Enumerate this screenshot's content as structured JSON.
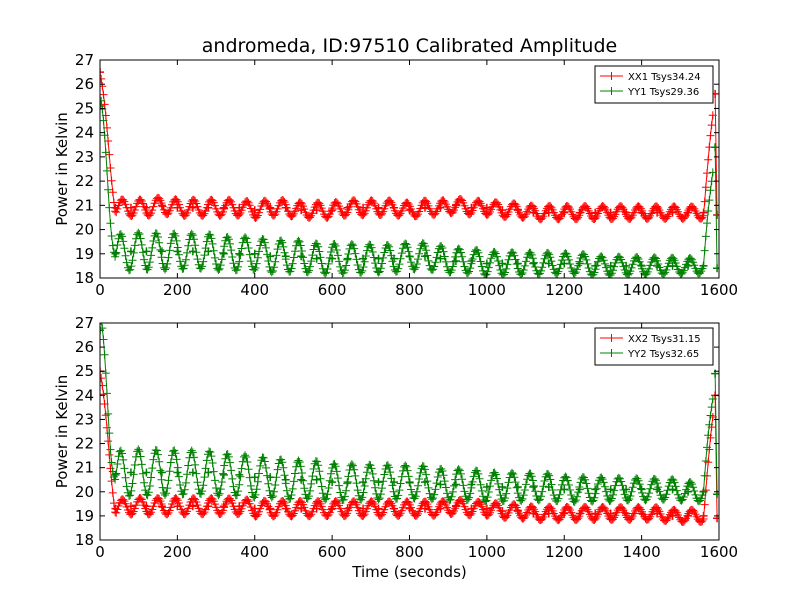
{
  "chart_data": [
    {
      "type": "line",
      "title": "andromeda, ID:97510 Calibrated Amplitude",
      "xlabel": "",
      "ylabel": "Power in Kelvin",
      "xlim": [
        0,
        1600
      ],
      "ylim": [
        18,
        27
      ],
      "xticks": [
        "0",
        "200",
        "400",
        "600",
        "800",
        "1000",
        "1200",
        "1400",
        "1600"
      ],
      "yticks": [
        "18",
        "19",
        "20",
        "21",
        "22",
        "23",
        "24",
        "25",
        "26",
        "27"
      ],
      "grid": false,
      "legend": "top-right",
      "marker": "+",
      "series": [
        {
          "name": "XX1 Tsys34.24",
          "color": "#ff0000",
          "x": [
            0,
            40,
            80,
            120,
            160,
            200,
            240,
            280,
            320,
            360,
            400,
            440,
            480,
            520,
            560,
            600,
            640,
            680,
            720,
            760,
            800,
            840,
            880,
            920,
            960,
            1000,
            1040,
            1080,
            1120,
            1160,
            1200,
            1240,
            1280,
            1320,
            1360,
            1400,
            1440,
            1480,
            1520,
            1560,
            1590,
            1595
          ],
          "y": [
            26.5,
            20.9,
            20.9,
            20.9,
            21.0,
            20.9,
            20.9,
            20.9,
            20.9,
            20.9,
            20.8,
            20.9,
            20.9,
            20.8,
            20.8,
            20.8,
            20.9,
            20.9,
            20.9,
            20.9,
            20.8,
            20.9,
            20.9,
            21.0,
            20.9,
            20.9,
            20.8,
            20.8,
            20.7,
            20.7,
            20.7,
            20.7,
            20.7,
            20.7,
            20.7,
            20.7,
            20.7,
            20.7,
            20.7,
            20.7,
            25.6,
            20.6
          ]
        },
        {
          "name": "YY1 Tsys29.36",
          "color": "#008000",
          "x": [
            0,
            40,
            80,
            120,
            160,
            200,
            240,
            280,
            320,
            360,
            400,
            440,
            480,
            520,
            560,
            600,
            640,
            680,
            720,
            760,
            800,
            840,
            880,
            920,
            960,
            1000,
            1040,
            1080,
            1120,
            1160,
            1200,
            1240,
            1280,
            1320,
            1360,
            1400,
            1440,
            1480,
            1520,
            1560,
            1590,
            1595
          ],
          "y": [
            25.1,
            19.0,
            19.1,
            19.1,
            19.1,
            19.1,
            19.1,
            19.1,
            19.0,
            19.0,
            19.0,
            18.9,
            18.9,
            18.9,
            18.8,
            18.8,
            18.8,
            18.8,
            18.8,
            18.8,
            18.9,
            18.9,
            18.8,
            18.7,
            18.7,
            18.6,
            18.6,
            18.6,
            18.6,
            18.6,
            18.6,
            18.6,
            18.5,
            18.5,
            18.5,
            18.5,
            18.5,
            18.5,
            18.5,
            18.5,
            23.4,
            18.4
          ]
        }
      ]
    },
    {
      "type": "line",
      "title": "",
      "xlabel": "Time (seconds)",
      "ylabel": "Power in Kelvin",
      "xlim": [
        0,
        1600
      ],
      "ylim": [
        18,
        27
      ],
      "xticks": [
        "0",
        "200",
        "400",
        "600",
        "800",
        "1000",
        "1200",
        "1400",
        "1600"
      ],
      "yticks": [
        "18",
        "19",
        "20",
        "21",
        "22",
        "23",
        "24",
        "25",
        "26",
        "27"
      ],
      "grid": false,
      "legend": "top-right",
      "marker": "+",
      "series": [
        {
          "name": "XX2 Tsys31.15",
          "color": "#ff0000",
          "x": [
            0,
            40,
            80,
            120,
            160,
            200,
            240,
            280,
            320,
            360,
            400,
            440,
            480,
            520,
            560,
            600,
            640,
            680,
            720,
            760,
            800,
            840,
            880,
            920,
            960,
            1000,
            1040,
            1080,
            1120,
            1160,
            1200,
            1240,
            1280,
            1320,
            1360,
            1400,
            1440,
            1480,
            1520,
            1560,
            1590,
            1595
          ],
          "y": [
            25.0,
            19.3,
            19.4,
            19.4,
            19.4,
            19.4,
            19.4,
            19.4,
            19.4,
            19.4,
            19.3,
            19.3,
            19.3,
            19.3,
            19.3,
            19.3,
            19.3,
            19.3,
            19.3,
            19.3,
            19.3,
            19.3,
            19.3,
            19.4,
            19.3,
            19.3,
            19.2,
            19.2,
            19.1,
            19.1,
            19.1,
            19.1,
            19.1,
            19.1,
            19.1,
            19.1,
            19.1,
            19.0,
            19.0,
            19.0,
            24.0,
            18.9
          ]
        },
        {
          "name": "YY2 Tsys32.65",
          "color": "#008000",
          "x": [
            0,
            40,
            80,
            120,
            160,
            200,
            240,
            280,
            320,
            360,
            400,
            440,
            480,
            520,
            560,
            600,
            640,
            680,
            720,
            760,
            800,
            840,
            880,
            920,
            960,
            1000,
            1040,
            1080,
            1120,
            1160,
            1200,
            1240,
            1280,
            1320,
            1360,
            1400,
            1440,
            1480,
            1520,
            1560,
            1590,
            1595
          ],
          "y": [
            26.7,
            20.7,
            20.8,
            20.8,
            20.8,
            20.8,
            20.8,
            20.8,
            20.7,
            20.7,
            20.6,
            20.6,
            20.5,
            20.5,
            20.5,
            20.4,
            20.4,
            20.4,
            20.4,
            20.4,
            20.4,
            20.4,
            20.3,
            20.3,
            20.3,
            20.2,
            20.2,
            20.2,
            20.2,
            20.2,
            20.1,
            20.1,
            20.1,
            20.1,
            20.1,
            20.1,
            20.1,
            20.1,
            20.0,
            20.0,
            24.9,
            19.9
          ]
        }
      ]
    }
  ]
}
